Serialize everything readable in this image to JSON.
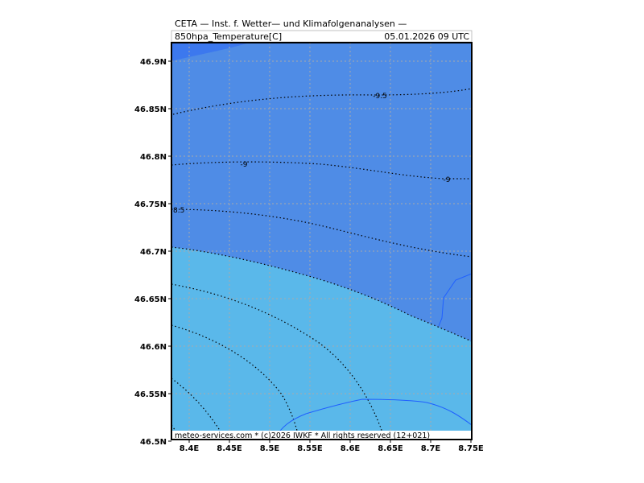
{
  "header": {
    "title": "CETA — Inst. f. Wetter— und Klimafolgenanalysen —",
    "variable": "850hpa_Temperature[C]",
    "datetime": "05.01.2026  09  UTC"
  },
  "footer": {
    "credit": "meteo-services.com * (c)2026 IWKF * All rights reserved (12+021)"
  },
  "map": {
    "x_ticks": [
      "8.4E",
      "8.45E",
      "8.5E",
      "8.55E",
      "8.6E",
      "8.65E",
      "8.7E",
      "8.75E"
    ],
    "y_ticks": [
      "46.9N",
      "46.85N",
      "46.8N",
      "46.75N",
      "46.7N",
      "46.65N",
      "46.6N",
      "46.55N",
      "46.5N"
    ],
    "contour_labels": [
      {
        "text": "-9.5"
      },
      {
        "text": "-9"
      },
      {
        "text": "-9"
      },
      {
        "text": "8.5"
      }
    ],
    "colors": {
      "cold_fill": "#4f8ce6",
      "warm_fill": "#5ab8ea",
      "corner_fill": "#3c78ee",
      "border": "#1f5fff",
      "grid": "#aaaaaa"
    }
  }
}
